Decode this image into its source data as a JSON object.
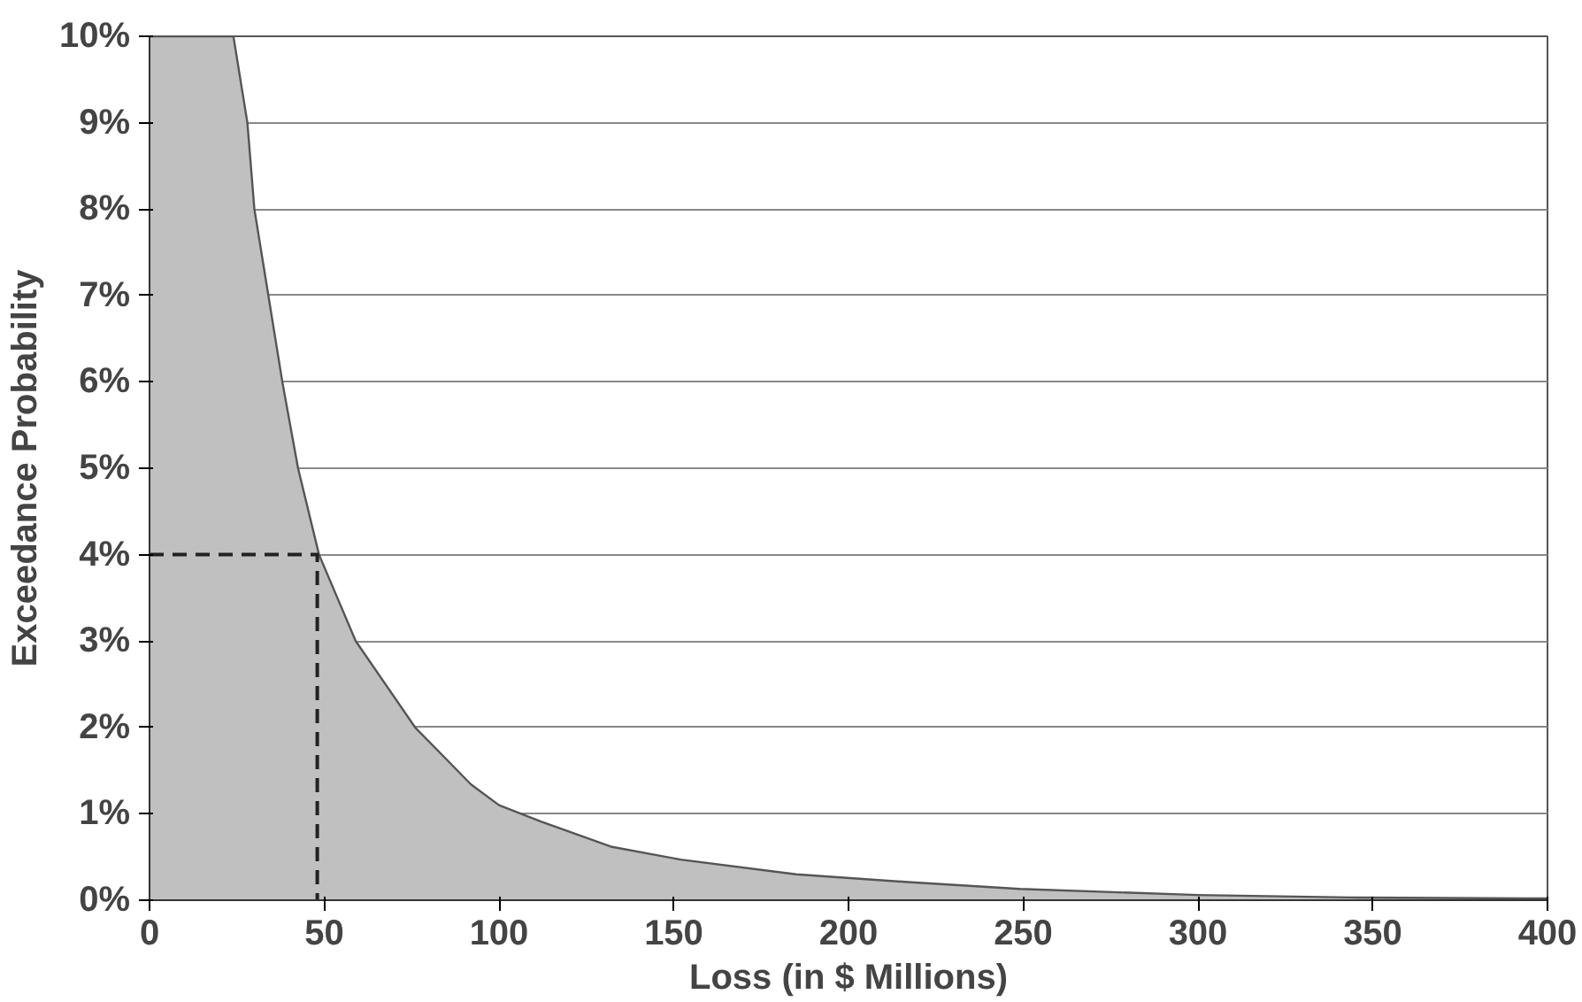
{
  "chart_data": {
    "type": "area",
    "xlabel": "Loss (in $ Millions)",
    "ylabel": "Exceedance Probability",
    "xlim": [
      0,
      400
    ],
    "ylim": [
      0,
      10
    ],
    "grid": "y",
    "xticks": [
      0,
      50,
      100,
      150,
      200,
      250,
      300,
      350,
      400
    ],
    "yticks": [
      {
        "value": 0,
        "label": "0%"
      },
      {
        "value": 1,
        "label": "1%"
      },
      {
        "value": 2,
        "label": "2%"
      },
      {
        "value": 3,
        "label": "3%"
      },
      {
        "value": 4,
        "label": "4%"
      },
      {
        "value": 5,
        "label": "5%"
      },
      {
        "value": 6,
        "label": "6%"
      },
      {
        "value": 7,
        "label": "7%"
      },
      {
        "value": 8,
        "label": "8%"
      },
      {
        "value": 9,
        "label": "9%"
      },
      {
        "value": 10,
        "label": "10%"
      }
    ],
    "series": [
      {
        "color": "#c0c0c0",
        "x": [
          0,
          24,
          28,
          30,
          34,
          38,
          42.5,
          48.5,
          59,
          76,
          92,
          100,
          112,
          132,
          152,
          185,
          217,
          249,
          300,
          346,
          394,
          400
        ],
        "values": [
          10,
          10,
          9,
          8,
          7,
          6,
          5,
          4,
          3,
          2,
          1.34,
          1.1,
          0.91,
          0.62,
          0.47,
          0.3,
          0.21,
          0.13,
          0.06,
          0.03,
          0.02,
          0.02
        ]
      },
      {
        "type": "line",
        "color": "#222222",
        "line_style": "dashed",
        "x": [
          0,
          48,
          48
        ],
        "values": [
          4,
          4,
          0
        ]
      }
    ]
  }
}
